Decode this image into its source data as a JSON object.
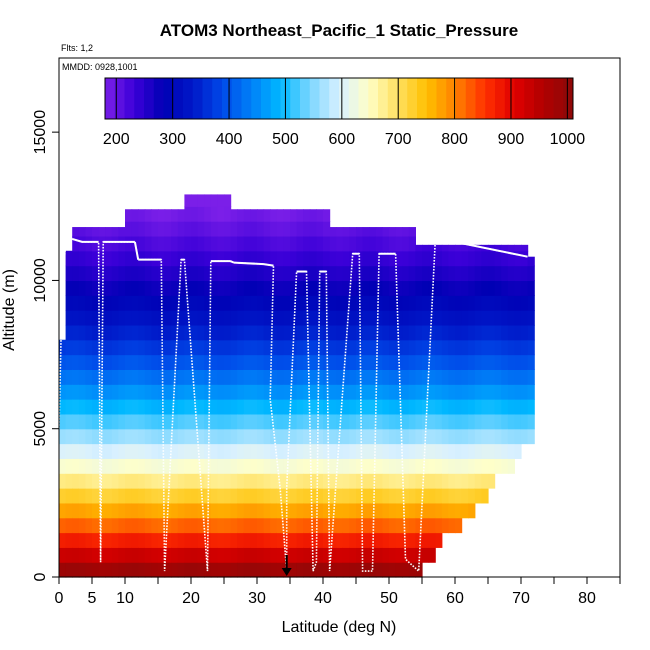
{
  "chart_data": {
    "type": "heatmap",
    "title": "ATOM3 Northeast_Pacific_1 Static_Pressure",
    "flights_note": "Flts: 1,2",
    "date_note": "MMDD: 0928,1001",
    "xlabel": "Latitude (deg N)",
    "ylabel": "Altitude (m)",
    "xlim": [
      0,
      85
    ],
    "ylim": [
      0,
      17500
    ],
    "x_ticks_major": [
      0,
      10,
      20,
      30,
      40,
      50,
      60,
      70,
      80
    ],
    "x_tick_labels": [
      "0",
      "5",
      "10",
      "20",
      "30",
      "40",
      "50",
      "60",
      "70",
      "80"
    ],
    "x_tick_label_values": [
      0,
      5,
      10,
      20,
      30,
      40,
      50,
      60,
      70,
      80
    ],
    "x_ticks_minor": [
      5,
      15,
      25,
      35,
      45,
      55,
      65,
      75,
      85
    ],
    "y_ticks": [
      0,
      5000,
      10000,
      15000
    ],
    "y_tick_labels": [
      "0",
      "5000",
      "10000",
      "15000"
    ],
    "colorbar": {
      "min": 180,
      "max": 1010,
      "tick_values": [
        200,
        300,
        400,
        500,
        600,
        700,
        800,
        900,
        1000
      ],
      "tick_labels": [
        "200",
        "300",
        "400",
        "500",
        "600",
        "700",
        "800",
        "900",
        "1000"
      ],
      "colors": [
        "#7b1fe8",
        "#3b00d8",
        "#0000b4",
        "#0018c8",
        "#0048e8",
        "#0080f8",
        "#00b8ff",
        "#7ad6ff",
        "#d8f0ff",
        "#ffffc8",
        "#ffe060",
        "#ffc000",
        "#ff8000",
        "#ff3000",
        "#e00000",
        "#b00000",
        "#8b0a0a"
      ]
    },
    "grid": false,
    "legend": "colorbar top",
    "bin_width_deg": 1,
    "bin_height_m": 500,
    "field_extent": [
      {
        "x": 0,
        "top": 8000
      },
      {
        "x": 0.5,
        "top": 10500
      },
      {
        "x": 1,
        "top": 11000
      },
      {
        "x": 2,
        "top": 11800
      },
      {
        "x": 5,
        "top": 11800
      },
      {
        "x": 9,
        "top": 11800
      },
      {
        "x": 10,
        "top": 12400
      },
      {
        "x": 18,
        "top": 12400
      },
      {
        "x": 19,
        "top": 12900
      },
      {
        "x": 25,
        "top": 12900
      },
      {
        "x": 26,
        "top": 12400
      },
      {
        "x": 40,
        "top": 12400
      },
      {
        "x": 41,
        "top": 11800
      },
      {
        "x": 53,
        "top": 11800
      },
      {
        "x": 54,
        "top": 11200
      },
      {
        "x": 67,
        "top": 11200
      },
      {
        "x": 71,
        "top": 10800
      }
    ],
    "field_right_edge": [
      {
        "alt": 0,
        "x": 55
      },
      {
        "alt": 500,
        "x": 57
      },
      {
        "alt": 1000,
        "x": 58
      },
      {
        "alt": 1500,
        "x": 61
      },
      {
        "alt": 2000,
        "x": 63
      },
      {
        "alt": 2500,
        "x": 65
      },
      {
        "alt": 3000,
        "x": 66
      },
      {
        "alt": 3500,
        "x": 69
      },
      {
        "alt": 4000,
        "x": 70
      },
      {
        "alt": 4500,
        "x": 72
      },
      {
        "alt": 10500,
        "x": 72
      },
      {
        "alt": 11000,
        "x": 71
      }
    ],
    "flight_track": {
      "lat": [
        0,
        0.3,
        0.6,
        1,
        1.5,
        2,
        3.5,
        4,
        6,
        6.3,
        6.7,
        9,
        11.5,
        12,
        15.5,
        16,
        18.5,
        19,
        22.5,
        23,
        26,
        26.5,
        31,
        32.5,
        32,
        33.5,
        34.5,
        34.5,
        36,
        37.5,
        38.5,
        39,
        39.5,
        40.5,
        41,
        44.5,
        45.5,
        46,
        47.5,
        48.5,
        51,
        52.5,
        54.5,
        57,
        60,
        71
      ],
      "alt": [
        5000,
        8000,
        10200,
        11200,
        11400,
        11400,
        11300,
        11300,
        11300,
        500,
        11300,
        11300,
        11300,
        10700,
        10700,
        200,
        10700,
        10700,
        200,
        10650,
        10650,
        10600,
        10550,
        10500,
        6000,
        3000,
        200,
        3000,
        10300,
        10300,
        200,
        500,
        10300,
        10300,
        200,
        10900,
        10900,
        200,
        200,
        10900,
        10900,
        600,
        200,
        11300,
        11300,
        10800
      ]
    },
    "marker": {
      "lat": 34.5,
      "alt": 0
    }
  }
}
